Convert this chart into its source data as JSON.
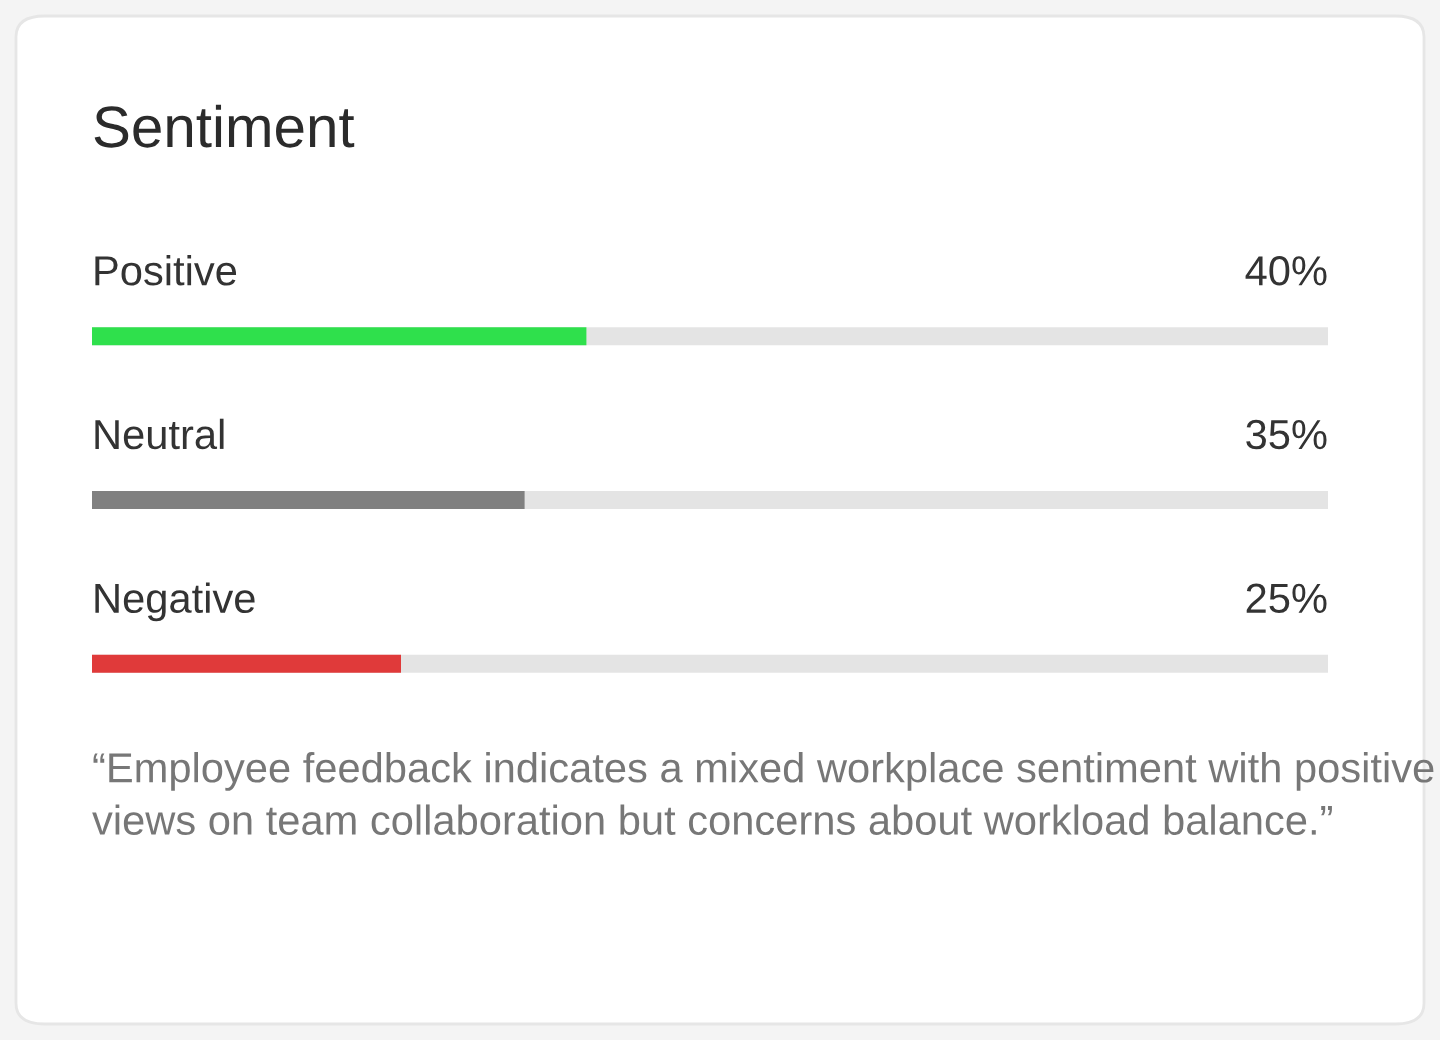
{
  "chart_data": {
    "type": "bar",
    "orientation": "horizontal",
    "title": "Sentiment",
    "categories": [
      "Positive",
      "Neutral",
      "Negative"
    ],
    "values": [
      40,
      35,
      25
    ],
    "colors": [
      "#2fe04c",
      "#808080",
      "#e03a3a"
    ],
    "value_labels": [
      "40%",
      "35%",
      "25%"
    ],
    "xlim": [
      0,
      100
    ],
    "annotations": [
      "“Employee feedback indicates a mixed workplace sentiment with positive views on team collaboration but concerns about workload balance.”"
    ]
  }
}
